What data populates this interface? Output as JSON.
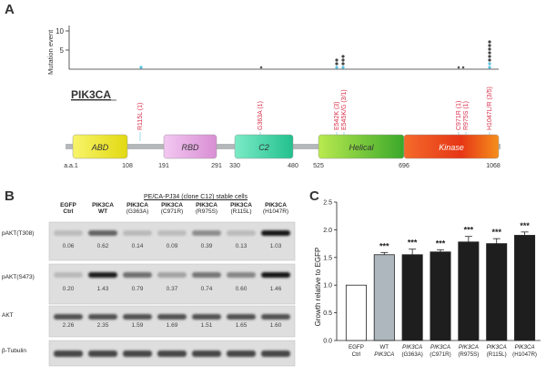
{
  "panels": {
    "a": "A",
    "b": "B",
    "c": "C"
  },
  "panel_a": {
    "y_axis_label": "Mutation event",
    "y_ticks": [
      "10",
      "5"
    ],
    "gene": "PIK3CA",
    "domains": [
      {
        "name": "ABD",
        "color": "#f2ee3a"
      },
      {
        "name": "RBD",
        "color": "#e9a6e6"
      },
      {
        "name": "C2",
        "color": "#3fd6a6"
      },
      {
        "name": "Helical",
        "color": "#7fcf33"
      },
      {
        "name": "Kinase",
        "color": "#e8461e"
      }
    ],
    "positions": [
      "a.a.1",
      "108",
      "191",
      "291",
      "330",
      "480",
      "525",
      "696",
      "1068"
    ],
    "mutation_labels": [
      "R115L (1)",
      "G363A (1)",
      "E542K (3)",
      "E545K/G (3/1)",
      "C971R (1)",
      "R975S (1)",
      "H1047L/R (3/5)"
    ],
    "label_color": "#d9304a"
  },
  "panel_b": {
    "clone_title": "PE/CA-PJ34 (clone C12) stable cells",
    "columns": [
      {
        "top": "EGFP",
        "bottom": "Ctrl"
      },
      {
        "top": "PIK3CA",
        "bottom": "WT"
      },
      {
        "top": "PIK3CA",
        "bottom": "(G363A)"
      },
      {
        "top": "PIK3CA",
        "bottom": "(C971R)"
      },
      {
        "top": "PIK3CA",
        "bottom": "(R975S)"
      },
      {
        "top": "PIK3CA",
        "bottom": "(R115L)"
      },
      {
        "top": "PIK3CA",
        "bottom": "(H1047R)"
      }
    ],
    "rows": [
      {
        "label": "pAKT(T308)",
        "values": [
          "0.06",
          "0.62",
          "0.14",
          "0.09",
          "0.39",
          "0.13",
          "1.03"
        ]
      },
      {
        "label": "pAKT(S473)",
        "values": [
          "0.20",
          "1.43",
          "0.79",
          "0.37",
          "0.74",
          "0.60",
          "1.46"
        ]
      },
      {
        "label": "AKT",
        "values": [
          "2.26",
          "2.35",
          "1.59",
          "1.69",
          "1.51",
          "1.65",
          "1.60"
        ]
      },
      {
        "label": "β-Tubulin",
        "values": []
      }
    ]
  },
  "chart_data": {
    "type": "bar",
    "ylabel": "Growth relative to EGFP",
    "ylim": [
      0,
      2.5
    ],
    "yticks": [
      "0.0",
      "0.5",
      "1.0",
      "1.5",
      "2.0",
      "2.5"
    ],
    "categories": [
      {
        "top": "EGFP",
        "bottom": "Ctrl"
      },
      {
        "top": "WT",
        "bottom": "PIK3CA"
      },
      {
        "top": "PIK3CA",
        "bottom": "(G363A)"
      },
      {
        "top": "PIK3CA",
        "bottom": "(C971R)"
      },
      {
        "top": "PIK3CA",
        "bottom": "(R975S)"
      },
      {
        "top": "PIK3CA",
        "bottom": "(R115L)"
      },
      {
        "top": "PIK3CA",
        "bottom": "(H1047R)"
      }
    ],
    "values": [
      1.0,
      1.55,
      1.55,
      1.6,
      1.78,
      1.75,
      1.9
    ],
    "errors": [
      0.0,
      0.04,
      0.1,
      0.04,
      0.1,
      0.09,
      0.06
    ],
    "significance": [
      "",
      "***",
      "***",
      "***",
      "***",
      "***",
      "***"
    ],
    "bar_colors": [
      "#ffffff",
      "#aeb7bd",
      "#1e1e1e",
      "#1e1e1e",
      "#1e1e1e",
      "#1e1e1e",
      "#1e1e1e"
    ]
  }
}
